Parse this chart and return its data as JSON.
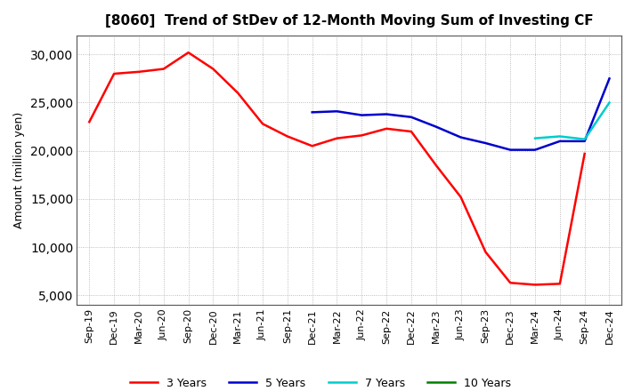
{
  "title": "[8060]  Trend of StDev of 12-Month Moving Sum of Investing CF",
  "ylabel": "Amount (million yen)",
  "background_color": "#ffffff",
  "grid_color": "#aaaaaa",
  "x_labels": [
    "Sep-19",
    "Dec-19",
    "Mar-20",
    "Jun-20",
    "Sep-20",
    "Dec-20",
    "Mar-21",
    "Jun-21",
    "Sep-21",
    "Dec-21",
    "Mar-22",
    "Jun-22",
    "Sep-22",
    "Dec-22",
    "Mar-23",
    "Jun-23",
    "Sep-23",
    "Dec-23",
    "Mar-24",
    "Jun-24",
    "Sep-24",
    "Dec-24"
  ],
  "ylim": [
    4000,
    32000
  ],
  "yticks": [
    5000,
    10000,
    15000,
    20000,
    25000,
    30000
  ],
  "series": {
    "3 Years": {
      "color": "#ff0000",
      "linewidth": 1.8,
      "values": [
        23000,
        28000,
        28200,
        28500,
        30200,
        28500,
        26000,
        22800,
        21500,
        20500,
        21300,
        21600,
        22300,
        22000,
        18500,
        15200,
        9500,
        6300,
        6100,
        6200,
        19700,
        null
      ]
    },
    "5 Years": {
      "color": "#0000cc",
      "linewidth": 1.8,
      "values": [
        null,
        null,
        null,
        null,
        null,
        null,
        null,
        null,
        null,
        24000,
        24100,
        23700,
        23800,
        23500,
        22500,
        21400,
        20800,
        20100,
        20100,
        21000,
        21000,
        27500
      ]
    },
    "7 Years": {
      "color": "#00cccc",
      "linewidth": 1.8,
      "values": [
        null,
        null,
        null,
        null,
        null,
        null,
        null,
        null,
        null,
        null,
        null,
        null,
        null,
        null,
        null,
        null,
        null,
        null,
        21300,
        21500,
        21200,
        25000
      ]
    },
    "10 Years": {
      "color": "#008000",
      "linewidth": 1.8,
      "values": [
        null,
        null,
        null,
        null,
        null,
        null,
        null,
        null,
        null,
        null,
        null,
        null,
        null,
        null,
        null,
        null,
        null,
        null,
        null,
        null,
        null,
        null
      ]
    }
  },
  "legend_labels": [
    "3 Years",
    "5 Years",
    "7 Years",
    "10 Years"
  ],
  "legend_colors": [
    "#ff0000",
    "#0000cc",
    "#00cccc",
    "#008000"
  ]
}
